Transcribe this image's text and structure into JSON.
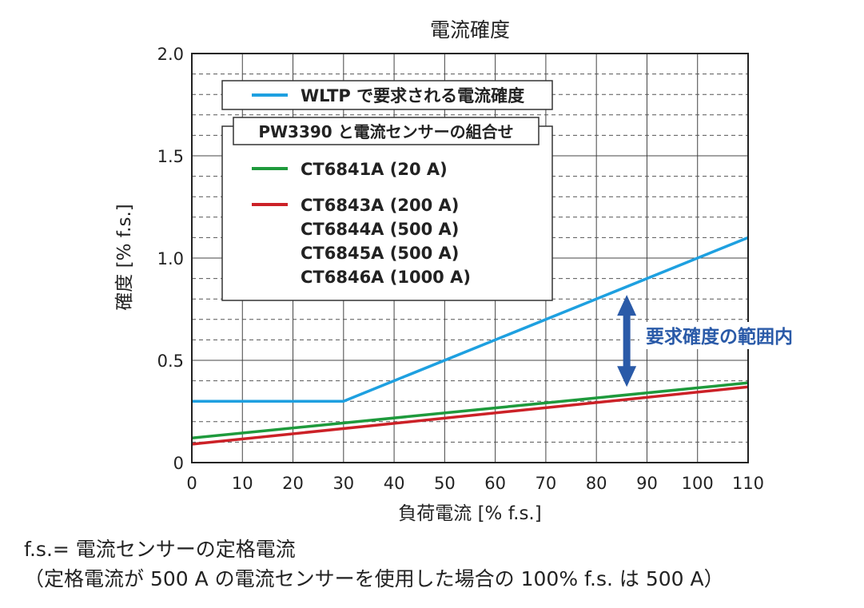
{
  "chart_data": {
    "type": "line",
    "title": "電流確度",
    "xlabel": "負荷電流 [% f.s.]",
    "ylabel": "確度 [% f.s.]",
    "xlim": [
      0,
      110
    ],
    "ylim": [
      0,
      2.0
    ],
    "x_ticks": [
      "0",
      "10",
      "20",
      "30",
      "40",
      "50",
      "60",
      "70",
      "80",
      "90",
      "100",
      "110"
    ],
    "y_ticks": [
      "0",
      "0.5",
      "1.0",
      "1.5",
      "2.0"
    ],
    "x_tick_values": [
      0,
      10,
      20,
      30,
      40,
      50,
      60,
      70,
      80,
      90,
      100,
      110
    ],
    "y_tick_values": [
      0,
      0.5,
      1.0,
      1.5,
      2.0
    ],
    "grid": true,
    "series": [
      {
        "name": "WLTP で要求される電流確度",
        "color": "#1ea0e0",
        "x": [
          0,
          30,
          110
        ],
        "y": [
          0.3,
          0.3,
          1.1
        ]
      },
      {
        "name": "CT6841A (20 A)",
        "color": "#1e9a3c",
        "x": [
          0,
          110
        ],
        "y": [
          0.12,
          0.39
        ]
      },
      {
        "name": "CT6843A (200 A)",
        "color": "#cc2127",
        "x": [
          0,
          110
        ],
        "y": [
          0.09,
          0.37
        ]
      }
    ],
    "legend": {
      "header": "PW3390 と電流センサーの組合せ",
      "red_extra_labels": [
        "CT6844A (500 A)",
        "CT6845A (500 A)",
        "CT6846A (1000 A)"
      ]
    },
    "annotation": {
      "text": "要求確度の範囲内",
      "color": "#2a5aa8",
      "x": 86,
      "y_range": [
        0.37,
        0.82
      ]
    }
  },
  "notes": [
    "f.s.= 電流センサーの定格電流",
    "（定格電流が 500 A の電流センサーを使用した場合の 100% f.s. は 500 A）"
  ]
}
